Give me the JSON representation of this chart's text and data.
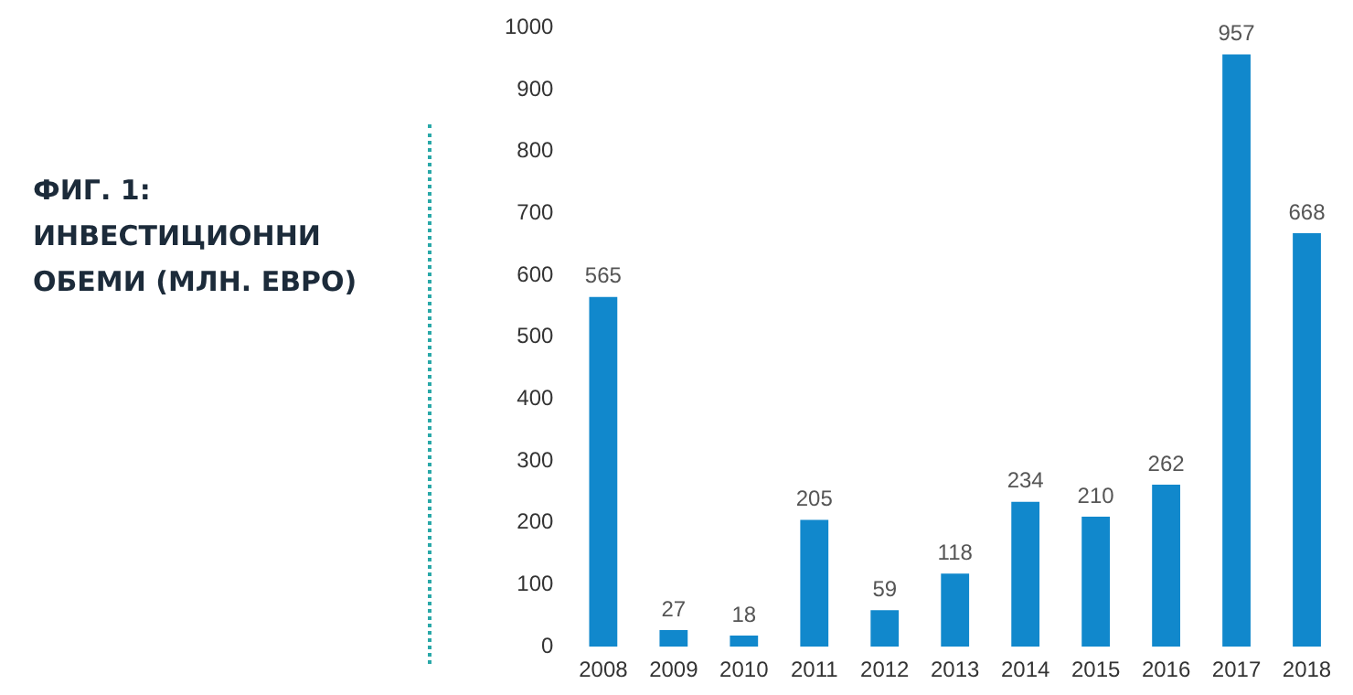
{
  "chart_data": {
    "type": "bar",
    "title": "ФИГ. 1: ИНВЕСТИЦИОННИ ОБЕМИ (МЛН. ЕВРО)",
    "categories": [
      "2008",
      "2009",
      "2010",
      "2011",
      "2012",
      "2013",
      "2014",
      "2015",
      "2016",
      "2017",
      "2018"
    ],
    "values": [
      565,
      27,
      18,
      205,
      59,
      118,
      234,
      210,
      262,
      957,
      668
    ],
    "color": "#1188cc",
    "ylim": [
      0,
      1000
    ],
    "yticks": [
      0,
      100,
      200,
      300,
      400,
      500,
      600,
      700,
      800,
      900,
      1000
    ],
    "data_labels": true,
    "grid": false,
    "legend": false
  }
}
